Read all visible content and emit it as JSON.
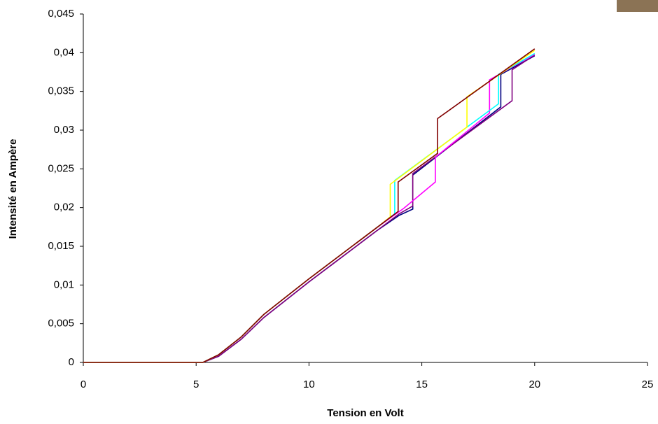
{
  "chart_data": {
    "type": "line",
    "xlabel": "Tension en Volt",
    "ylabel": "Intensité en Ampère",
    "xlim": [
      0,
      25
    ],
    "xticks": [
      0,
      5,
      10,
      15,
      20,
      25
    ],
    "ylim": [
      0,
      0.045
    ],
    "yticks": [
      0,
      {
        "value": 0.005,
        "label": "0,005"
      },
      {
        "value": 0.01,
        "label": "0,01"
      },
      {
        "value": 0.015,
        "label": "0,015"
      },
      {
        "value": 0.02,
        "label": "0,02"
      },
      {
        "value": 0.025,
        "label": "0,025"
      },
      {
        "value": 0.03,
        "label": "0,03"
      },
      {
        "value": 0.035,
        "label": "0,035"
      },
      {
        "value": 0.04,
        "label": "0,04"
      },
      {
        "value": 0.045,
        "label": "0,045"
      }
    ],
    "grid": false,
    "series": [
      {
        "color": "#000080",
        "x": [
          0,
          5.3,
          6,
          7,
          8,
          9,
          10,
          11,
          12,
          13,
          14,
          14.6,
          14.6,
          18.5,
          18.5,
          20
        ],
        "values": [
          0,
          0,
          0.0008,
          0.003,
          0.0058,
          0.0081,
          0.0104,
          0.0126,
          0.0148,
          0.017,
          0.019,
          0.0198,
          0.0242,
          0.033,
          0.0372,
          0.0396
        ]
      },
      {
        "color": "#800080",
        "x": [
          0,
          5.3,
          6,
          7,
          8,
          9,
          10,
          11,
          12,
          13,
          14,
          14.6,
          14.6,
          19,
          19,
          20
        ],
        "values": [
          0,
          0,
          0.0008,
          0.003,
          0.0058,
          0.0081,
          0.0104,
          0.0126,
          0.0148,
          0.017,
          0.0192,
          0.0202,
          0.0244,
          0.0338,
          0.0378,
          0.0397
        ]
      },
      {
        "color": "#ff00ff",
        "x": [
          0,
          5.3,
          6,
          7,
          8,
          9,
          10,
          11,
          12,
          13,
          14.2,
          15.6,
          15.6,
          18,
          18,
          20
        ],
        "values": [
          0,
          0,
          0.001,
          0.0033,
          0.0062,
          0.0085,
          0.0108,
          0.013,
          0.0152,
          0.0174,
          0.0199,
          0.0233,
          0.0265,
          0.0322,
          0.0365,
          0.0398
        ]
      },
      {
        "color": "#00ffff",
        "x": [
          0,
          5.3,
          6,
          7,
          8,
          9,
          10,
          11,
          12,
          13,
          13.8,
          13.8,
          18.4,
          18.4,
          20
        ],
        "values": [
          0,
          0,
          0.001,
          0.0033,
          0.0062,
          0.0085,
          0.0108,
          0.013,
          0.0152,
          0.0174,
          0.0192,
          0.0235,
          0.0334,
          0.0372,
          0.0399
        ]
      },
      {
        "color": "#ffff00",
        "x": [
          0,
          5.3,
          6,
          7,
          8,
          9,
          10,
          11,
          12,
          13,
          13.6,
          13.6,
          17,
          17,
          20
        ],
        "values": [
          0,
          0,
          0.001,
          0.0033,
          0.0062,
          0.0085,
          0.0108,
          0.013,
          0.0152,
          0.0174,
          0.0188,
          0.023,
          0.0304,
          0.0343,
          0.0403
        ]
      },
      {
        "color": "#800000",
        "x": [
          0,
          5.3,
          6,
          7,
          8,
          9,
          10,
          11,
          12,
          13,
          13.95,
          13.95,
          15.7,
          15.7,
          20
        ],
        "values": [
          0,
          0,
          0.001,
          0.0033,
          0.0062,
          0.0085,
          0.0108,
          0.013,
          0.0152,
          0.0174,
          0.0195,
          0.0233,
          0.027,
          0.0315,
          0.0405
        ]
      }
    ]
  }
}
